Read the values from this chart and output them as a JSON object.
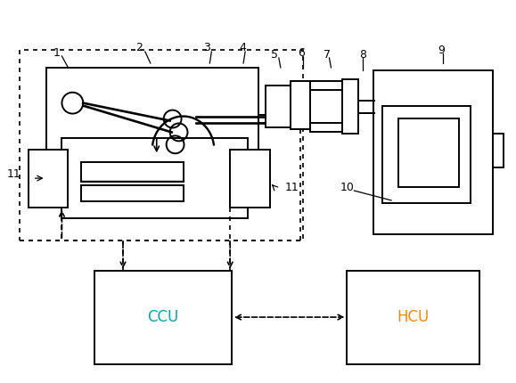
{
  "bg_color": "#ffffff",
  "line_color": "#000000",
  "ccu_color": "#00aaaa",
  "hcu_color": "#ff8800",
  "fig_width": 5.79,
  "fig_height": 4.3,
  "dpi": 100
}
